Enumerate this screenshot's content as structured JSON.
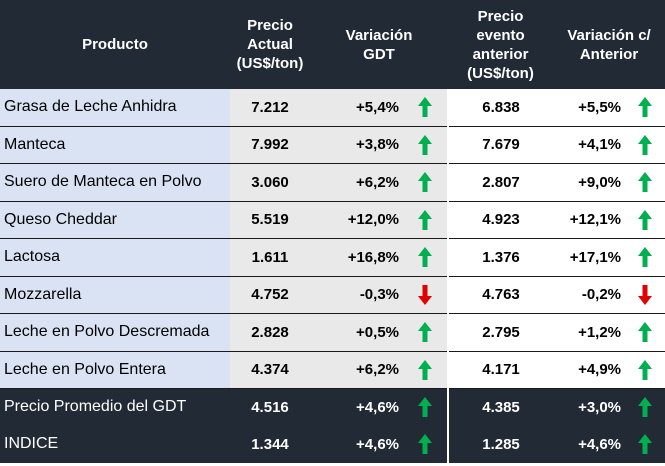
{
  "colors": {
    "header_bg": "#222a35",
    "name_bg": "#dae3f3",
    "up": "#00b050",
    "down": "#e00000"
  },
  "table": {
    "headers": {
      "producto": "Producto",
      "precio_actual": [
        "Precio",
        "Actual",
        "(US$/ton)"
      ],
      "variacion_gdt": [
        "Variación",
        "GDT"
      ],
      "precio_anterior": [
        "Precio",
        "evento",
        "anterior",
        "(US$/ton)"
      ],
      "variacion_anterior": [
        "Variación c/",
        "Anterior"
      ]
    },
    "rows": [
      {
        "product": "Grasa de Leche Anhidra",
        "price": "7.212",
        "var_gdt": "+5,4%",
        "dir_gdt": "up-arrow-icon",
        "prev_price": "6.838",
        "var_prev": "+5,5%",
        "dir_prev": "up-arrow-icon"
      },
      {
        "product": "Manteca",
        "price": "7.992",
        "var_gdt": "+3,8%",
        "dir_gdt": "up-arrow-icon",
        "prev_price": "7.679",
        "var_prev": "+4,1%",
        "dir_prev": "up-arrow-icon"
      },
      {
        "product": "Suero de Manteca en Polvo",
        "price": "3.060",
        "var_gdt": "+6,2%",
        "dir_gdt": "up-arrow-icon",
        "prev_price": "2.807",
        "var_prev": "+9,0%",
        "dir_prev": "up-arrow-icon"
      },
      {
        "product": "Queso Cheddar",
        "price": "5.519",
        "var_gdt": "+12,0%",
        "dir_gdt": "up-arrow-icon",
        "prev_price": "4.923",
        "var_prev": "+12,1%",
        "dir_prev": "up-arrow-icon"
      },
      {
        "product": "Lactosa",
        "price": "1.611",
        "var_gdt": "+16,8%",
        "dir_gdt": "up-arrow-icon",
        "prev_price": "1.376",
        "var_prev": "+17,1%",
        "dir_prev": "up-arrow-icon"
      },
      {
        "product": "Mozzarella",
        "price": "4.752",
        "var_gdt": "-0,3%",
        "dir_gdt": "down-arrow-icon",
        "prev_price": "4.763",
        "var_prev": "-0,2%",
        "dir_prev": "down-arrow-icon"
      },
      {
        "product": "Leche en Polvo Descremada",
        "price": "2.828",
        "var_gdt": "+0,5%",
        "dir_gdt": "up-arrow-icon",
        "prev_price": "2.795",
        "var_prev": "+1,2%",
        "dir_prev": "up-arrow-icon"
      },
      {
        "product": "Leche en Polvo Entera",
        "price": "4.374",
        "var_gdt": "+6,2%",
        "dir_gdt": "up-arrow-icon",
        "prev_price": "4.171",
        "var_prev": "+4,9%",
        "dir_prev": "up-arrow-icon"
      }
    ],
    "summary": [
      {
        "product": "Precio Promedio del GDT",
        "price": "4.516",
        "var_gdt": "+4,6%",
        "dir_gdt": "up-arrow-icon",
        "prev_price": "4.385",
        "var_prev": "+3,0%",
        "dir_prev": "up-arrow-icon"
      },
      {
        "product": "INDICE",
        "price": "1.344",
        "var_gdt": "+4,6%",
        "dir_gdt": "up-arrow-icon",
        "prev_price": "1.285",
        "var_prev": "+4,6%",
        "dir_prev": "up-arrow-icon"
      }
    ]
  }
}
